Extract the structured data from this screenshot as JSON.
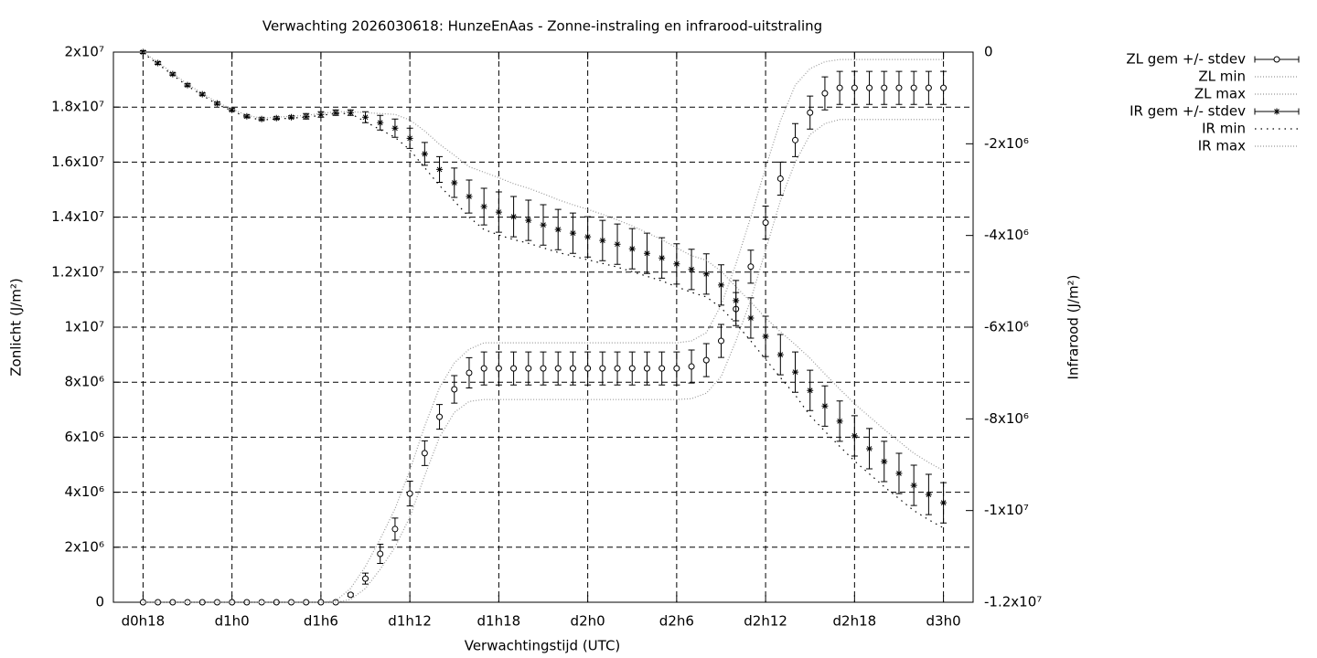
{
  "chart_data": {
    "type": "errorbar-line",
    "title": "Verwachting 2026030618: HunzeEnAas - Zonne-instraling en infrarood-uitstraling",
    "x_label": "Verwachtingstijd (UTC)",
    "y_label": "Zonlicht (J/m²)",
    "y2_label": "Infrarood (J/m²)",
    "grid": true,
    "legend": "top-right-outside",
    "xlim": [
      16,
      74
    ],
    "ylim": [
      0,
      20000000.0
    ],
    "y2lim": [
      -12000000.0,
      0
    ],
    "xticks": [
      {
        "value": 18,
        "label": "d0h18"
      },
      {
        "value": 24,
        "label": "d1h0"
      },
      {
        "value": 30,
        "label": "d1h6"
      },
      {
        "value": 36,
        "label": "d1h12"
      },
      {
        "value": 42,
        "label": "d1h18"
      },
      {
        "value": 48,
        "label": "d2h0"
      },
      {
        "value": 54,
        "label": "d2h6"
      },
      {
        "value": 60,
        "label": "d2h12"
      },
      {
        "value": 66,
        "label": "d2h18"
      },
      {
        "value": 72,
        "label": "d3h0"
      }
    ],
    "yticks": [
      0,
      {
        "value": 2000000.0,
        "label": "2x10⁶"
      },
      {
        "value": 4000000.0,
        "label": "4x10⁶"
      },
      {
        "value": 6000000.0,
        "label": "6x10⁶"
      },
      {
        "value": 8000000.0,
        "label": "8x10⁶"
      },
      {
        "value": 10000000.0,
        "label": "1x10⁷"
      },
      {
        "value": 12000000.0,
        "label": "1.2x10⁷"
      },
      {
        "value": 14000000.0,
        "label": "1.4x10⁷"
      },
      {
        "value": 16000000.0,
        "label": "1.6x10⁷"
      },
      {
        "value": 18000000.0,
        "label": "1.8x10⁷"
      },
      {
        "value": 20000000.0,
        "label": "2x10⁷"
      }
    ],
    "y2ticks": [
      {
        "value": -12000000.0,
        "label": "-1.2x10⁷"
      },
      {
        "value": -10000000.0,
        "label": "-1x10⁷"
      },
      {
        "value": -8000000.0,
        "label": "-8x10⁶"
      },
      {
        "value": -6000000.0,
        "label": "-6x10⁶"
      },
      {
        "value": -4000000.0,
        "label": "-4x10⁶"
      },
      {
        "value": -2000000.0,
        "label": "-2x10⁶"
      },
      0
    ],
    "x": [
      18,
      19,
      20,
      21,
      22,
      23,
      24,
      25,
      26,
      27,
      28,
      29,
      30,
      31,
      32,
      33,
      34,
      35,
      36,
      37,
      38,
      39,
      40,
      41,
      42,
      43,
      44,
      45,
      46,
      47,
      48,
      49,
      50,
      51,
      52,
      53,
      54,
      55,
      56,
      57,
      58,
      59,
      60,
      61,
      62,
      63,
      64,
      65,
      66,
      67,
      68,
      69,
      70,
      71,
      72
    ],
    "series": [
      {
        "name": "ZL gem +/- stdev",
        "style": "errorbars",
        "marker": "circle",
        "color": "#000000",
        "values": [
          0,
          0,
          0,
          0,
          0,
          0,
          0,
          0,
          0,
          0,
          0,
          0,
          0,
          0,
          270000.0,
          860000.0,
          1760000.0,
          2660000.0,
          3950000.0,
          5420000.0,
          6740000.0,
          7740000.0,
          8340000.0,
          8500000.0,
          8500000.0,
          8500000.0,
          8500000.0,
          8500000.0,
          8500000.0,
          8500000.0,
          8500000.0,
          8500000.0,
          8500000.0,
          8500000.0,
          8500000.0,
          8500000.0,
          8500000.0,
          8570000.0,
          8800000.0,
          9500000.0,
          10660000.0,
          12200000.0,
          13800000.0,
          15400000.0,
          16800000.0,
          17800000.0,
          18500000.0,
          18700000.0,
          18700000.0,
          18700000.0,
          18700000.0,
          18700000.0,
          18700000.0,
          18700000.0,
          18700000.0
        ],
        "errors": [
          0,
          0,
          0,
          0,
          0,
          0,
          0,
          0,
          0,
          0,
          0,
          0,
          0,
          0,
          50000.0,
          200000.0,
          350000.0,
          400000.0,
          450000.0,
          450000.0,
          450000.0,
          500000.0,
          550000.0,
          600000.0,
          600000.0,
          600000.0,
          600000.0,
          600000.0,
          600000.0,
          600000.0,
          600000.0,
          600000.0,
          600000.0,
          600000.0,
          600000.0,
          600000.0,
          600000.0,
          600000.0,
          600000.0,
          600000.0,
          600000.0,
          600000.0,
          600000.0,
          600000.0,
          600000.0,
          600000.0,
          600000.0,
          600000.0,
          600000.0,
          600000.0,
          600000.0,
          600000.0,
          600000.0,
          600000.0,
          600000.0
        ]
      },
      {
        "name": "ZL min",
        "style": "dots",
        "color": "#999999",
        "dash": "1 2",
        "values": [
          0,
          0,
          0,
          0,
          0,
          0,
          0,
          0,
          0,
          0,
          0,
          0,
          0,
          0,
          100000.0,
          500000.0,
          1200000.0,
          2000000.0,
          3100000.0,
          4600000.0,
          6000000.0,
          6900000.0,
          7300000.0,
          7370000.0,
          7370000.0,
          7370000.0,
          7370000.0,
          7370000.0,
          7370000.0,
          7370000.0,
          7370000.0,
          7370000.0,
          7370000.0,
          7370000.0,
          7370000.0,
          7370000.0,
          7370000.0,
          7400000.0,
          7600000.0,
          8200000.0,
          9500000.0,
          11000000.0,
          12800000.0,
          14600000.0,
          16000000.0,
          17000000.0,
          17400000.0,
          17550000.0,
          17550000.0,
          17550000.0,
          17550000.0,
          17550000.0,
          17550000.0,
          17550000.0,
          17550000.0
        ]
      },
      {
        "name": "ZL max",
        "style": "dots",
        "color": "#999999",
        "dash": "1 2",
        "values": [
          0,
          0,
          0,
          0,
          0,
          0,
          0,
          0,
          0,
          0,
          0,
          0,
          0,
          50000.0,
          500000.0,
          1300000.0,
          2300000.0,
          3400000.0,
          4800000.0,
          6400000.0,
          7800000.0,
          8700000.0,
          9200000.0,
          9430000.0,
          9430000.0,
          9430000.0,
          9430000.0,
          9430000.0,
          9430000.0,
          9430000.0,
          9430000.0,
          9430000.0,
          9430000.0,
          9430000.0,
          9430000.0,
          9430000.0,
          9430000.0,
          9500000.0,
          9800000.0,
          10800000.0,
          12300000.0,
          14000000.0,
          15800000.0,
          17500000.0,
          18800000.0,
          19400000.0,
          19650000.0,
          19730000.0,
          19730000.0,
          19730000.0,
          19730000.0,
          19730000.0,
          19730000.0,
          19730000.0,
          19730000.0
        ]
      },
      {
        "name": "IR gem +/- stdev",
        "style": "errorbars",
        "marker": "star",
        "color": "#000000",
        "axis": "y2",
        "values": [
          0,
          -240000.0,
          -480000.0,
          -720000.0,
          -920000.0,
          -1120000.0,
          -1260000.0,
          -1400000.0,
          -1460000.0,
          -1440000.0,
          -1420000.0,
          -1400000.0,
          -1360000.0,
          -1320000.0,
          -1320000.0,
          -1420000.0,
          -1540000.0,
          -1660000.0,
          -1880000.0,
          -2220000.0,
          -2560000.0,
          -2850000.0,
          -3150000.0,
          -3370000.0,
          -3490000.0,
          -3590000.0,
          -3670000.0,
          -3770000.0,
          -3870000.0,
          -3950000.0,
          -4030000.0,
          -4110000.0,
          -4190000.0,
          -4290000.0,
          -4390000.0,
          -4490000.0,
          -4620000.0,
          -4740000.0,
          -4840000.0,
          -5080000.0,
          -5420000.0,
          -5800000.0,
          -6200000.0,
          -6600000.0,
          -6980000.0,
          -7380000.0,
          -7720000.0,
          -8050000.0,
          -8370000.0,
          -8650000.0,
          -8930000.0,
          -9190000.0,
          -9450000.0,
          -9650000.0,
          -9830000.0
        ],
        "errors": [
          30000.0,
          30000.0,
          30000.0,
          30000.0,
          30000.0,
          30000.0,
          30000.0,
          30000.0,
          30000.0,
          30000.0,
          30000.0,
          60000.0,
          60000.0,
          60000.0,
          60000.0,
          120000.0,
          160000.0,
          200000.0,
          220000.0,
          250000.0,
          280000.0,
          320000.0,
          360000.0,
          400000.0,
          440000.0,
          440000.0,
          440000.0,
          440000.0,
          440000.0,
          440000.0,
          440000.0,
          440000.0,
          440000.0,
          440000.0,
          440000.0,
          440000.0,
          440000.0,
          440000.0,
          440000.0,
          440000.0,
          440000.0,
          440000.0,
          440000.0,
          440000.0,
          440000.0,
          440000.0,
          440000.0,
          440000.0,
          440000.0,
          440000.0,
          440000.0,
          440000.0,
          440000.0,
          440000.0,
          440000.0
        ]
      },
      {
        "name": "IR min",
        "style": "dots",
        "color": "#000000",
        "dash": "1.5 5",
        "axis": "y2",
        "values": [
          -20000.0,
          -260000.0,
          -500000.0,
          -740000.0,
          -940000.0,
          -1140000.0,
          -1280000.0,
          -1420000.0,
          -1480000.0,
          -1460000.0,
          -1440000.0,
          -1420000.0,
          -1380000.0,
          -1340000.0,
          -1340000.0,
          -1520000.0,
          -1690000.0,
          -1860000.0,
          -2130000.0,
          -2520000.0,
          -2910000.0,
          -3250000.0,
          -3600000.0,
          -3870000.0,
          -3990000.0,
          -4090000.0,
          -4170000.0,
          -4270000.0,
          -4370000.0,
          -4450000.0,
          -4530000.0,
          -4610000.0,
          -4690000.0,
          -4790000.0,
          -4890000.0,
          -4990000.0,
          -5120000.0,
          -5240000.0,
          -5340000.0,
          -5580000.0,
          -5920000.0,
          -6300000.0,
          -6700000.0,
          -7100000.0,
          -7480000.0,
          -7930000.0,
          -8270000.0,
          -8600000.0,
          -8920000.0,
          -9200000.0,
          -9480000.0,
          -9740000.0,
          -10000000.0,
          -10200000.0,
          -10380000.0
        ]
      },
      {
        "name": "IR max",
        "style": "dots",
        "color": "#999999",
        "dash": "1 2",
        "axis": "y2",
        "values": [
          0,
          -220000.0,
          -460000.0,
          -700000.0,
          -900000.0,
          -1100000.0,
          -1240000.0,
          -1380000.0,
          -1440000.0,
          -1420000.0,
          -1400000.0,
          -1380000.0,
          -1340000.0,
          -1300000.0,
          -1300000.0,
          -1320000.0,
          -1340000.0,
          -1360000.0,
          -1480000.0,
          -1720000.0,
          -2010000.0,
          -2250000.0,
          -2500000.0,
          -2620000.0,
          -2740000.0,
          -2870000.0,
          -2970000.0,
          -3090000.0,
          -3220000.0,
          -3330000.0,
          -3430000.0,
          -3540000.0,
          -3660000.0,
          -3790000.0,
          -3940000.0,
          -4090000.0,
          -4270000.0,
          -4440000.0,
          -4540000.0,
          -4780000.0,
          -5120000.0,
          -5450000.0,
          -5800000.0,
          -6100000.0,
          -6380000.0,
          -6680000.0,
          -7020000.0,
          -7350000.0,
          -7670000.0,
          -7950000.0,
          -8230000.0,
          -8490000.0,
          -8750000.0,
          -8950000.0,
          -9130000.0
        ]
      }
    ]
  }
}
